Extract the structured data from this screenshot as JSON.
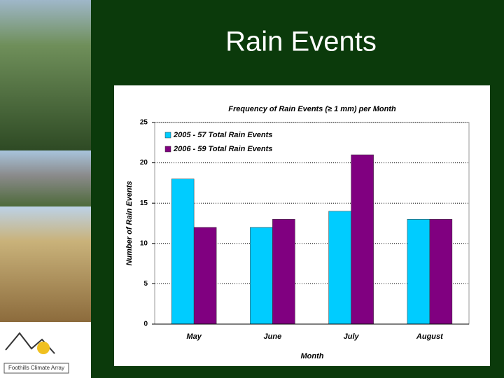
{
  "slide_title": "Rain Events",
  "logo_text": "Foothills Climate Array",
  "chart_data": {
    "type": "bar",
    "title": "Frequency of Rain Events (≥ 1 mm) per Month",
    "x_label": "Month",
    "y_label": "Number of Rain Events",
    "categories": [
      "May",
      "June",
      "July",
      "August"
    ],
    "series": [
      {
        "name": "2005 - 57 Total Rain Events",
        "color": "#00ccff",
        "values": [
          18,
          12,
          14,
          13
        ]
      },
      {
        "name": "2006 - 59 Total Rain Events",
        "color": "#800080",
        "values": [
          12,
          13,
          21,
          13
        ]
      }
    ],
    "ylim": [
      0,
      25
    ],
    "yticks": [
      0,
      5,
      10,
      15,
      20,
      25
    ],
    "grid": true,
    "legend": "top-left"
  }
}
